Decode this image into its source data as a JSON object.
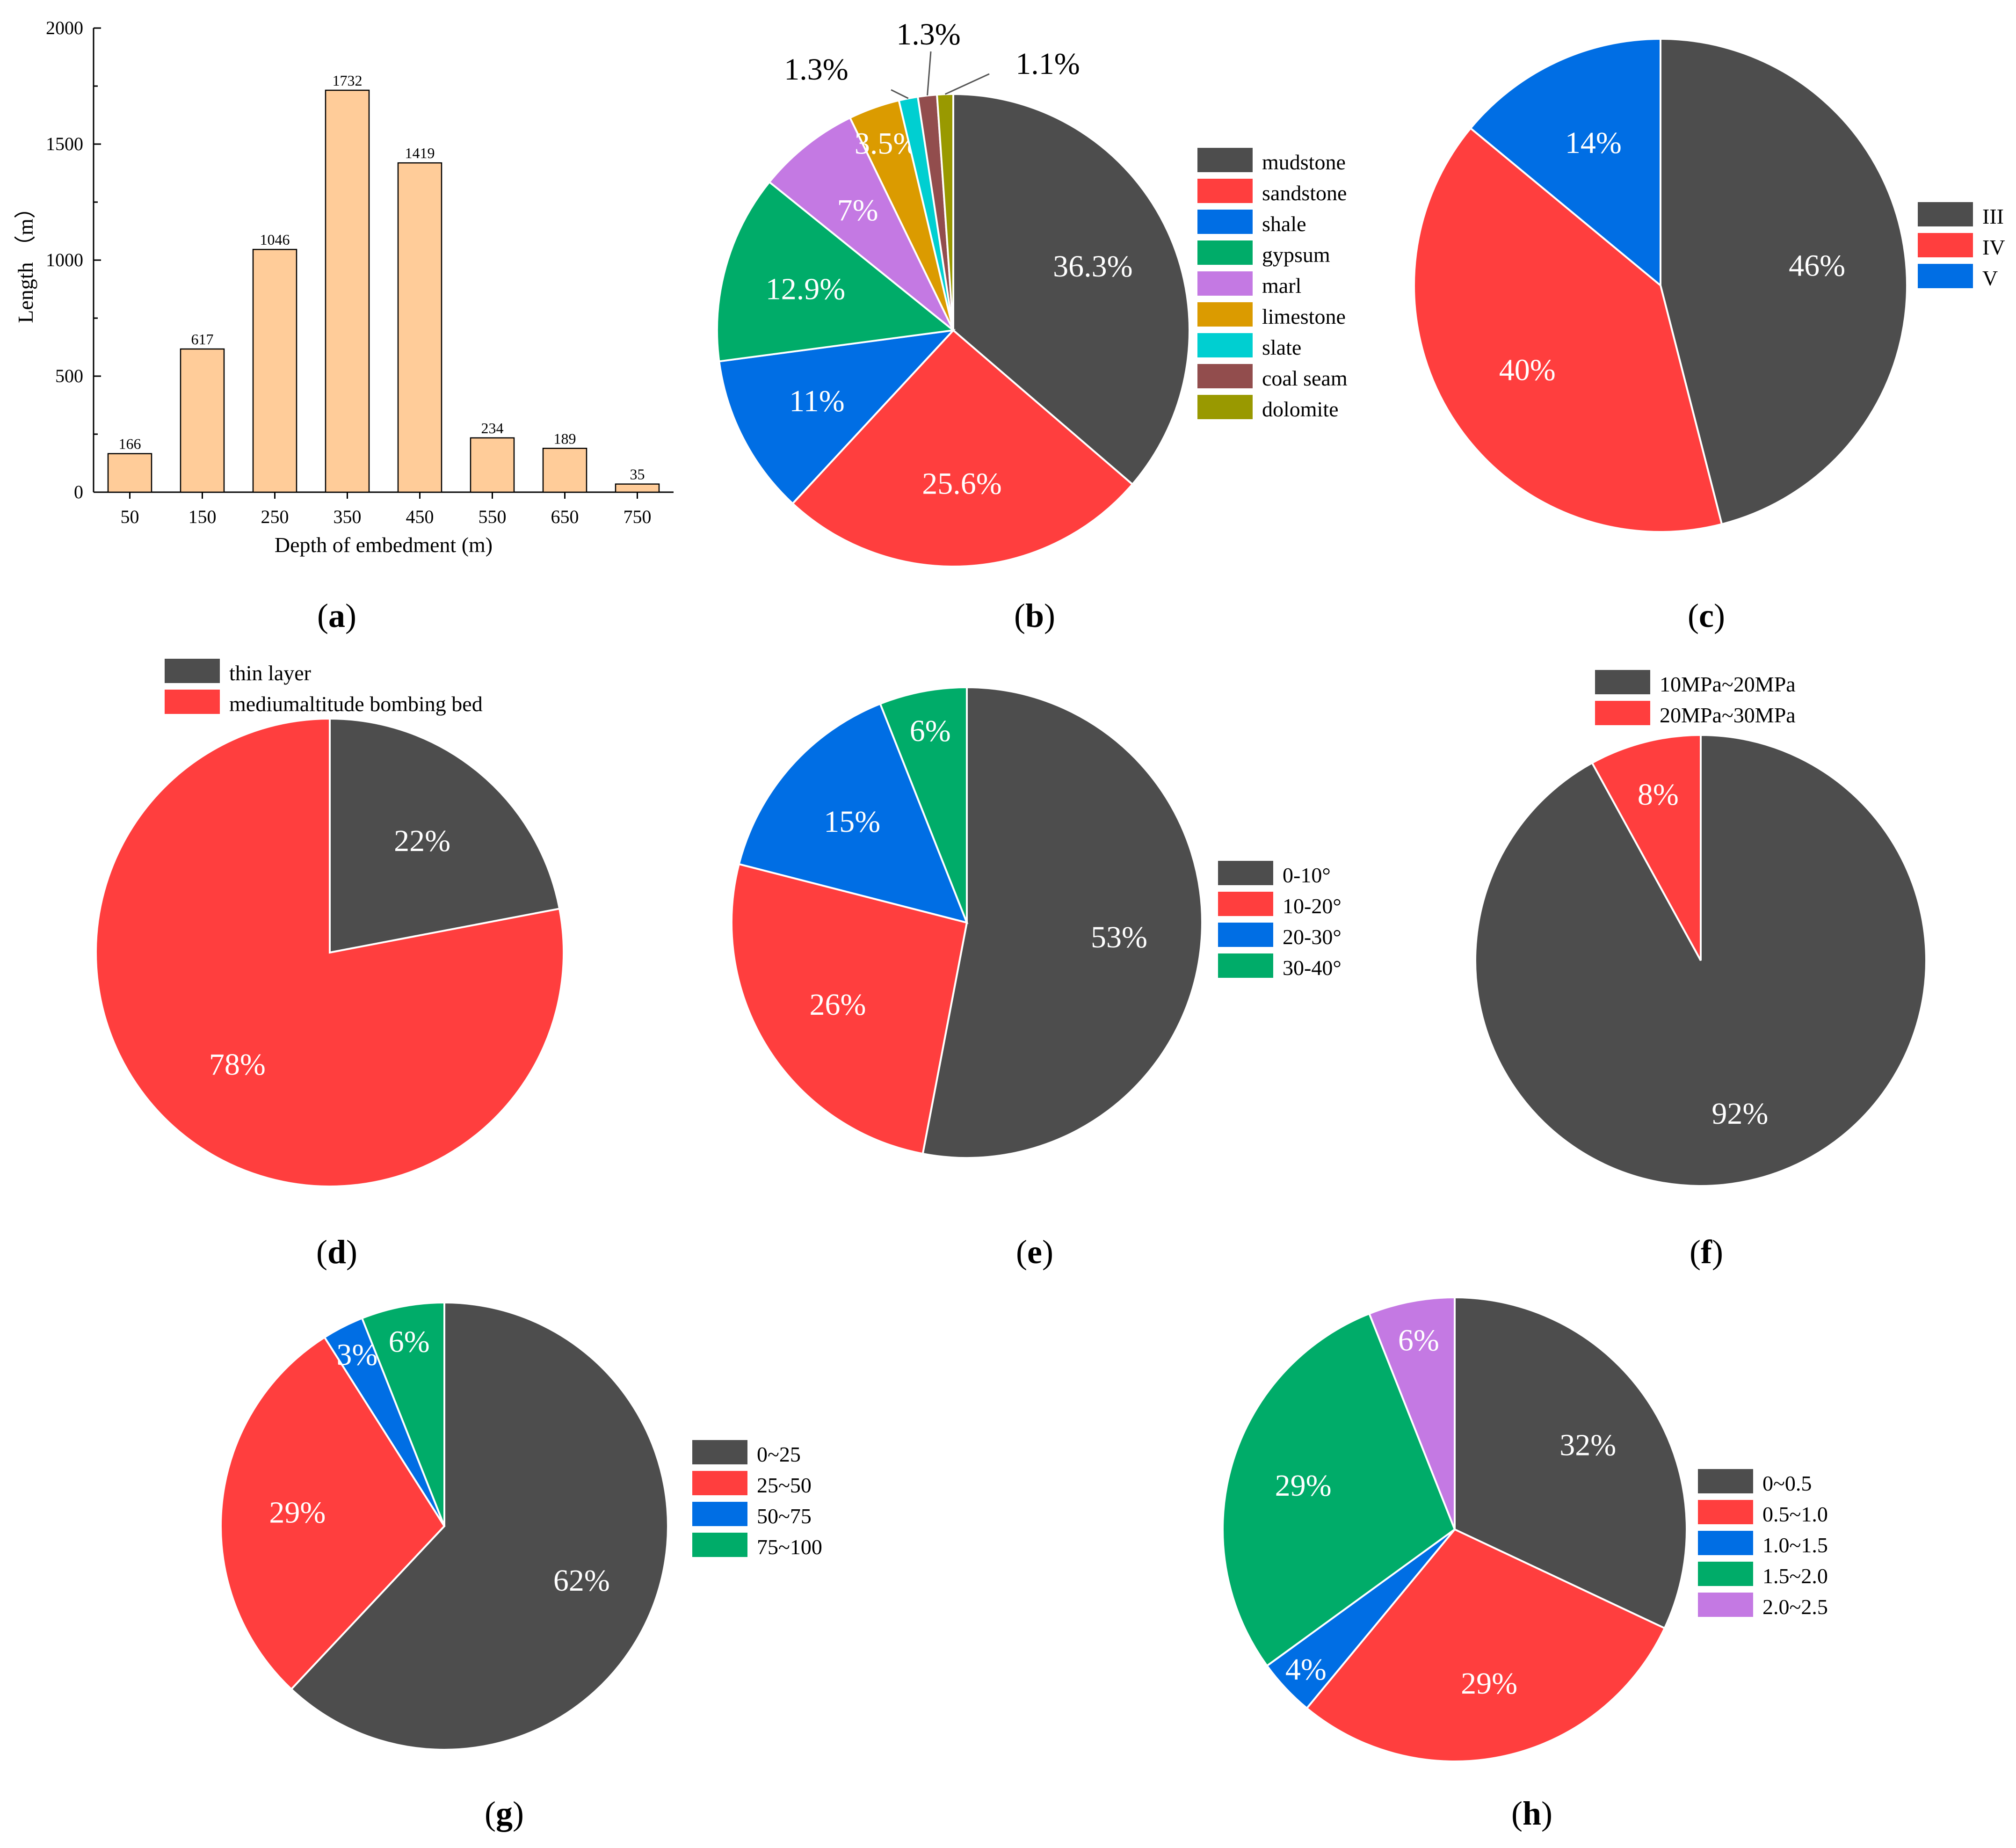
{
  "chart_data": [
    {
      "id": "a",
      "type": "bar",
      "panel_label": "(a)",
      "panel_letter": "a",
      "panel_paren_open": "(",
      "panel_paren_close": ")",
      "categories": [
        "50",
        "150",
        "250",
        "350",
        "450",
        "550",
        "650",
        "750"
      ],
      "values": [
        166,
        617,
        1046,
        1732,
        1419,
        234,
        189,
        35
      ],
      "value_labels": [
        "166",
        "617",
        "1046",
        "1732",
        "1419",
        "234",
        "189",
        "35"
      ],
      "xlabel": "Depth of embedment (m)",
      "ylabel": "Length （m）",
      "ylim": [
        0,
        2000
      ],
      "yticks": [
        "0",
        "500",
        "1000",
        "1500",
        "2000"
      ],
      "bar_color": "#ffcc99"
    },
    {
      "id": "b",
      "type": "pie",
      "panel_letter": "b",
      "labels": [
        "mudstone",
        "sandstone",
        "shale",
        "gypsum",
        "marl",
        "limestone",
        "slate",
        "coal seam",
        "dolomite"
      ],
      "values": [
        36.3,
        25.6,
        11,
        12.9,
        7,
        3.5,
        1.3,
        1.3,
        1.1
      ],
      "value_labels": [
        "36.3%",
        "25.6%",
        "11%",
        "12.9%",
        "7%",
        "3.5%",
        "1.3%",
        "1.3%",
        "1.1%"
      ],
      "colors": [
        "#4d4d4d",
        "#ff3e3e",
        "#006ee4",
        "#00ac69",
        "#c479e3",
        "#db9b00",
        "#00cfd1",
        "#924d4d",
        "#999900"
      ]
    },
    {
      "id": "c",
      "type": "pie",
      "panel_letter": "c",
      "labels": [
        "III",
        "IV",
        "V"
      ],
      "values": [
        46,
        40,
        14
      ],
      "value_labels": [
        "46%",
        "40%",
        "14%"
      ],
      "colors": [
        "#4d4d4d",
        "#ff3e3e",
        "#006ee4"
      ]
    },
    {
      "id": "d",
      "type": "pie",
      "panel_letter": "d",
      "labels": [
        "thin layer",
        "mediumaltitude bombing bed"
      ],
      "values": [
        22,
        78
      ],
      "value_labels": [
        "22%",
        "78%"
      ],
      "colors": [
        "#4d4d4d",
        "#ff3e3e"
      ]
    },
    {
      "id": "e",
      "type": "pie",
      "panel_letter": "e",
      "labels": [
        "0-10°",
        "10-20°",
        "20-30°",
        "30-40°"
      ],
      "values": [
        53,
        26,
        15,
        6
      ],
      "value_labels": [
        "53%",
        "26%",
        "15%",
        "6%"
      ],
      "colors": [
        "#4d4d4d",
        "#ff3e3e",
        "#006ee4",
        "#00ac69"
      ]
    },
    {
      "id": "f",
      "type": "pie",
      "panel_letter": "f",
      "labels": [
        "10MPa~20MPa",
        "20MPa~30MPa"
      ],
      "values": [
        92,
        8
      ],
      "value_labels": [
        "92%",
        "8%"
      ],
      "colors": [
        "#4d4d4d",
        "#ff3e3e"
      ]
    },
    {
      "id": "g",
      "type": "pie",
      "panel_letter": "g",
      "labels": [
        "0~25",
        "25~50",
        "50~75",
        "75~100"
      ],
      "values": [
        62,
        29,
        3,
        6
      ],
      "value_labels": [
        "62%",
        "29%",
        "3%",
        "6%"
      ],
      "colors": [
        "#4d4d4d",
        "#ff3e3e",
        "#006ee4",
        "#00ac69"
      ]
    },
    {
      "id": "h",
      "type": "pie",
      "panel_letter": "h",
      "labels": [
        "0~0.5",
        "0.5~1.0",
        "1.0~1.5",
        "1.5~2.0",
        "2.0~2.5"
      ],
      "values": [
        32,
        29,
        4,
        29,
        6
      ],
      "value_labels": [
        "32%",
        "29%",
        "4%",
        "29%",
        "6%"
      ],
      "colors": [
        "#4d4d4d",
        "#ff3e3e",
        "#006ee4",
        "#00ac69",
        "#c479e3"
      ]
    }
  ]
}
